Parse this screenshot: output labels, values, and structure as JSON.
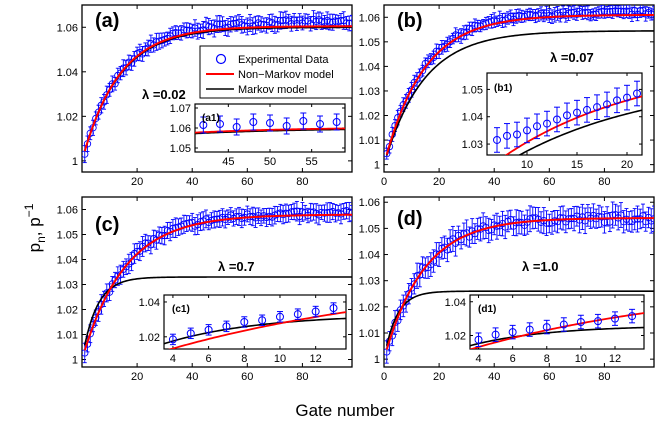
{
  "figure": {
    "xlabel": "Gate number",
    "ylabel_main": "p",
    "ylabel_sub": "n",
    "ylabel_mid": ", p",
    "ylabel_sup": "−1"
  },
  "legend": [
    {
      "name": "Experimental Data",
      "color": "#0000ff",
      "marker": "circle"
    },
    {
      "name": "Non−Markov model",
      "color": "#ff0000",
      "marker": "line"
    },
    {
      "name": "Markov model",
      "color": "#000000",
      "marker": "line"
    }
  ],
  "colors": {
    "data": "#0000ff",
    "non_markov": "#ff0000",
    "markov": "#000000"
  },
  "chart_data": [
    {
      "id": "a",
      "type": "line",
      "title": "(a)",
      "annotation": "λ =0.02",
      "xlim": [
        0,
        98
      ],
      "ylim": [
        0.995,
        1.07
      ],
      "xticks": [
        20,
        40,
        60,
        80
      ],
      "yticks": [
        1,
        1.02,
        1.04,
        1.06
      ],
      "xticklabels": [
        "20",
        "40",
        "60",
        "80"
      ],
      "yticklabels": [
        "1",
        "1.02",
        "1.04",
        "1.06"
      ],
      "model": {
        "plateau_nonmarkov": 1.0605,
        "plateau_markov": 1.06,
        "rate": 0.075,
        "start": 1.0,
        "x_min": 1,
        "x_max": 98
      },
      "data": {
        "x_min": 1,
        "x_max": 98,
        "plateau": 1.0625,
        "rate": 0.07,
        "start": 1.0,
        "err": 0.004
      },
      "inset": {
        "label": "(a1)",
        "xlim": [
          41,
          59
        ],
        "ylim": [
          1.048,
          1.072
        ],
        "xticks": [
          45,
          50,
          55
        ],
        "yticks": [
          1.05,
          1.06,
          1.07
        ],
        "xticklabels": [
          "45",
          "50",
          "55"
        ],
        "yticklabels": [
          "1.05",
          "1.06",
          "1.07"
        ],
        "points_x": [
          42,
          44,
          46,
          48,
          50,
          52,
          54,
          56,
          58
        ],
        "points_y": [
          1.0615,
          1.062,
          1.0605,
          1.063,
          1.0625,
          1.061,
          1.0635,
          1.062,
          1.063
        ],
        "err": 0.004
      }
    },
    {
      "id": "b",
      "type": "line",
      "title": "(b)",
      "annotation": "λ =0.07",
      "xlim": [
        0,
        98
      ],
      "ylim": [
        0.997,
        1.065
      ],
      "xticks": [
        0,
        20,
        40,
        60,
        80
      ],
      "yticks": [
        1,
        1.01,
        1.02,
        1.03,
        1.04,
        1.05,
        1.06
      ],
      "xticklabels": [
        "0",
        "20",
        "40",
        "60",
        "80"
      ],
      "yticklabels": [
        "1",
        "1.01",
        "1.02",
        "1.03",
        "1.04",
        "1.05",
        "1.06"
      ],
      "model": {
        "plateau_nonmarkov": 1.061,
        "plateau_markov": 1.0545,
        "rate": 0.07,
        "start": 1.0,
        "x_min": 1,
        "x_max": 98
      },
      "data": {
        "x_min": 1,
        "x_max": 98,
        "plateau": 1.062,
        "rate": 0.07,
        "start": 1.0,
        "err": 0.003
      },
      "inset": {
        "label": "(b1)",
        "xlim": [
          6,
          21.5
        ],
        "ylim": [
          1.026,
          1.056
        ],
        "xticks": [
          10,
          15,
          20
        ],
        "yticks": [
          1.03,
          1.04,
          1.05
        ],
        "xticklabels": [
          "10",
          "15",
          "20"
        ],
        "yticklabels": [
          "1.03",
          "1.04",
          "1.05"
        ],
        "points_x": [
          7,
          8,
          9,
          10,
          11,
          12,
          13,
          14,
          15,
          16,
          17,
          18,
          19,
          20,
          21
        ],
        "points_y": [
          1.0315,
          1.033,
          1.0335,
          1.035,
          1.0365,
          1.0375,
          1.039,
          1.0405,
          1.0415,
          1.0425,
          1.0435,
          1.0445,
          1.046,
          1.047,
          1.0485
        ],
        "err": 0.0045
      }
    },
    {
      "id": "c",
      "type": "line",
      "title": "(c)",
      "annotation": "λ =0.7",
      "xlim": [
        0,
        98
      ],
      "ylim": [
        0.997,
        1.065
      ],
      "xticks": [
        20,
        40,
        60,
        80
      ],
      "yticks": [
        1,
        1.01,
        1.02,
        1.03,
        1.04,
        1.05,
        1.06
      ],
      "xticklabels": [
        "20",
        "40",
        "60",
        "80"
      ],
      "yticklabels": [
        "1",
        "1.01",
        "1.02",
        "1.03",
        "1.04",
        "1.05",
        "1.06"
      ],
      "model": {
        "plateau_nonmarkov": 1.058,
        "plateau_markov": 1.033,
        "rate": 0.065,
        "rate_markov": 0.19,
        "start": 1.0,
        "x_min": 1,
        "x_max": 98
      },
      "data": {
        "x_min": 1,
        "x_max": 98,
        "plateau": 1.0585,
        "rate": 0.065,
        "start": 1.0,
        "err": 0.004
      },
      "inset": {
        "label": "(c1)",
        "xlim": [
          3.5,
          13.7
        ],
        "ylim": [
          1.013,
          1.044
        ],
        "xticks": [
          4,
          6,
          8,
          10,
          12
        ],
        "yticks": [
          1.02,
          1.04
        ],
        "xticklabels": [
          "4",
          "6",
          "8",
          "10",
          "12"
        ],
        "yticklabels": [
          "1.02",
          "1.04"
        ],
        "points_x": [
          4,
          5,
          6,
          7,
          8,
          9,
          10,
          11,
          12,
          13
        ],
        "points_y": [
          1.0185,
          1.022,
          1.024,
          1.026,
          1.0285,
          1.0295,
          1.0315,
          1.033,
          1.0345,
          1.0365
        ],
        "err": 0.003
      }
    },
    {
      "id": "d",
      "type": "line",
      "title": "(d)",
      "annotation": "λ =1.0",
      "xlim": [
        0,
        98
      ],
      "ylim": [
        0.997,
        1.062
      ],
      "xticks": [
        0,
        20,
        40,
        60,
        80
      ],
      "yticks": [
        1,
        1.01,
        1.02,
        1.03,
        1.04,
        1.05,
        1.06
      ],
      "xticklabels": [
        "0",
        "20",
        "40",
        "60",
        "80"
      ],
      "yticklabels": [
        "1",
        "1.01",
        "1.02",
        "1.03",
        "1.04",
        "1.05",
        "1.06"
      ],
      "model": {
        "plateau_nonmarkov": 1.054,
        "plateau_markov": 1.026,
        "rate": 0.07,
        "rate_markov": 0.22,
        "start": 1.0,
        "x_min": 1,
        "x_max": 98
      },
      "data": {
        "x_min": 1,
        "x_max": 98,
        "plateau": 1.054,
        "rate": 0.07,
        "start": 1.0,
        "err": 0.005
      },
      "inset": {
        "label": "(d1)",
        "xlim": [
          3.5,
          13.7
        ],
        "ylim": [
          1.012,
          1.044
        ],
        "xticks": [
          4,
          6,
          8,
          10,
          12
        ],
        "yticks": [
          1.02,
          1.04
        ],
        "xticklabels": [
          "4",
          "6",
          "8",
          "10",
          "12"
        ],
        "yticklabels": [
          "1.02",
          "1.04"
        ],
        "points_x": [
          4,
          5,
          6,
          7,
          8,
          9,
          10,
          11,
          12,
          13
        ],
        "points_y": [
          1.0175,
          1.0205,
          1.022,
          1.0235,
          1.025,
          1.0265,
          1.028,
          1.0285,
          1.03,
          1.0315
        ],
        "err": 0.004
      }
    }
  ]
}
